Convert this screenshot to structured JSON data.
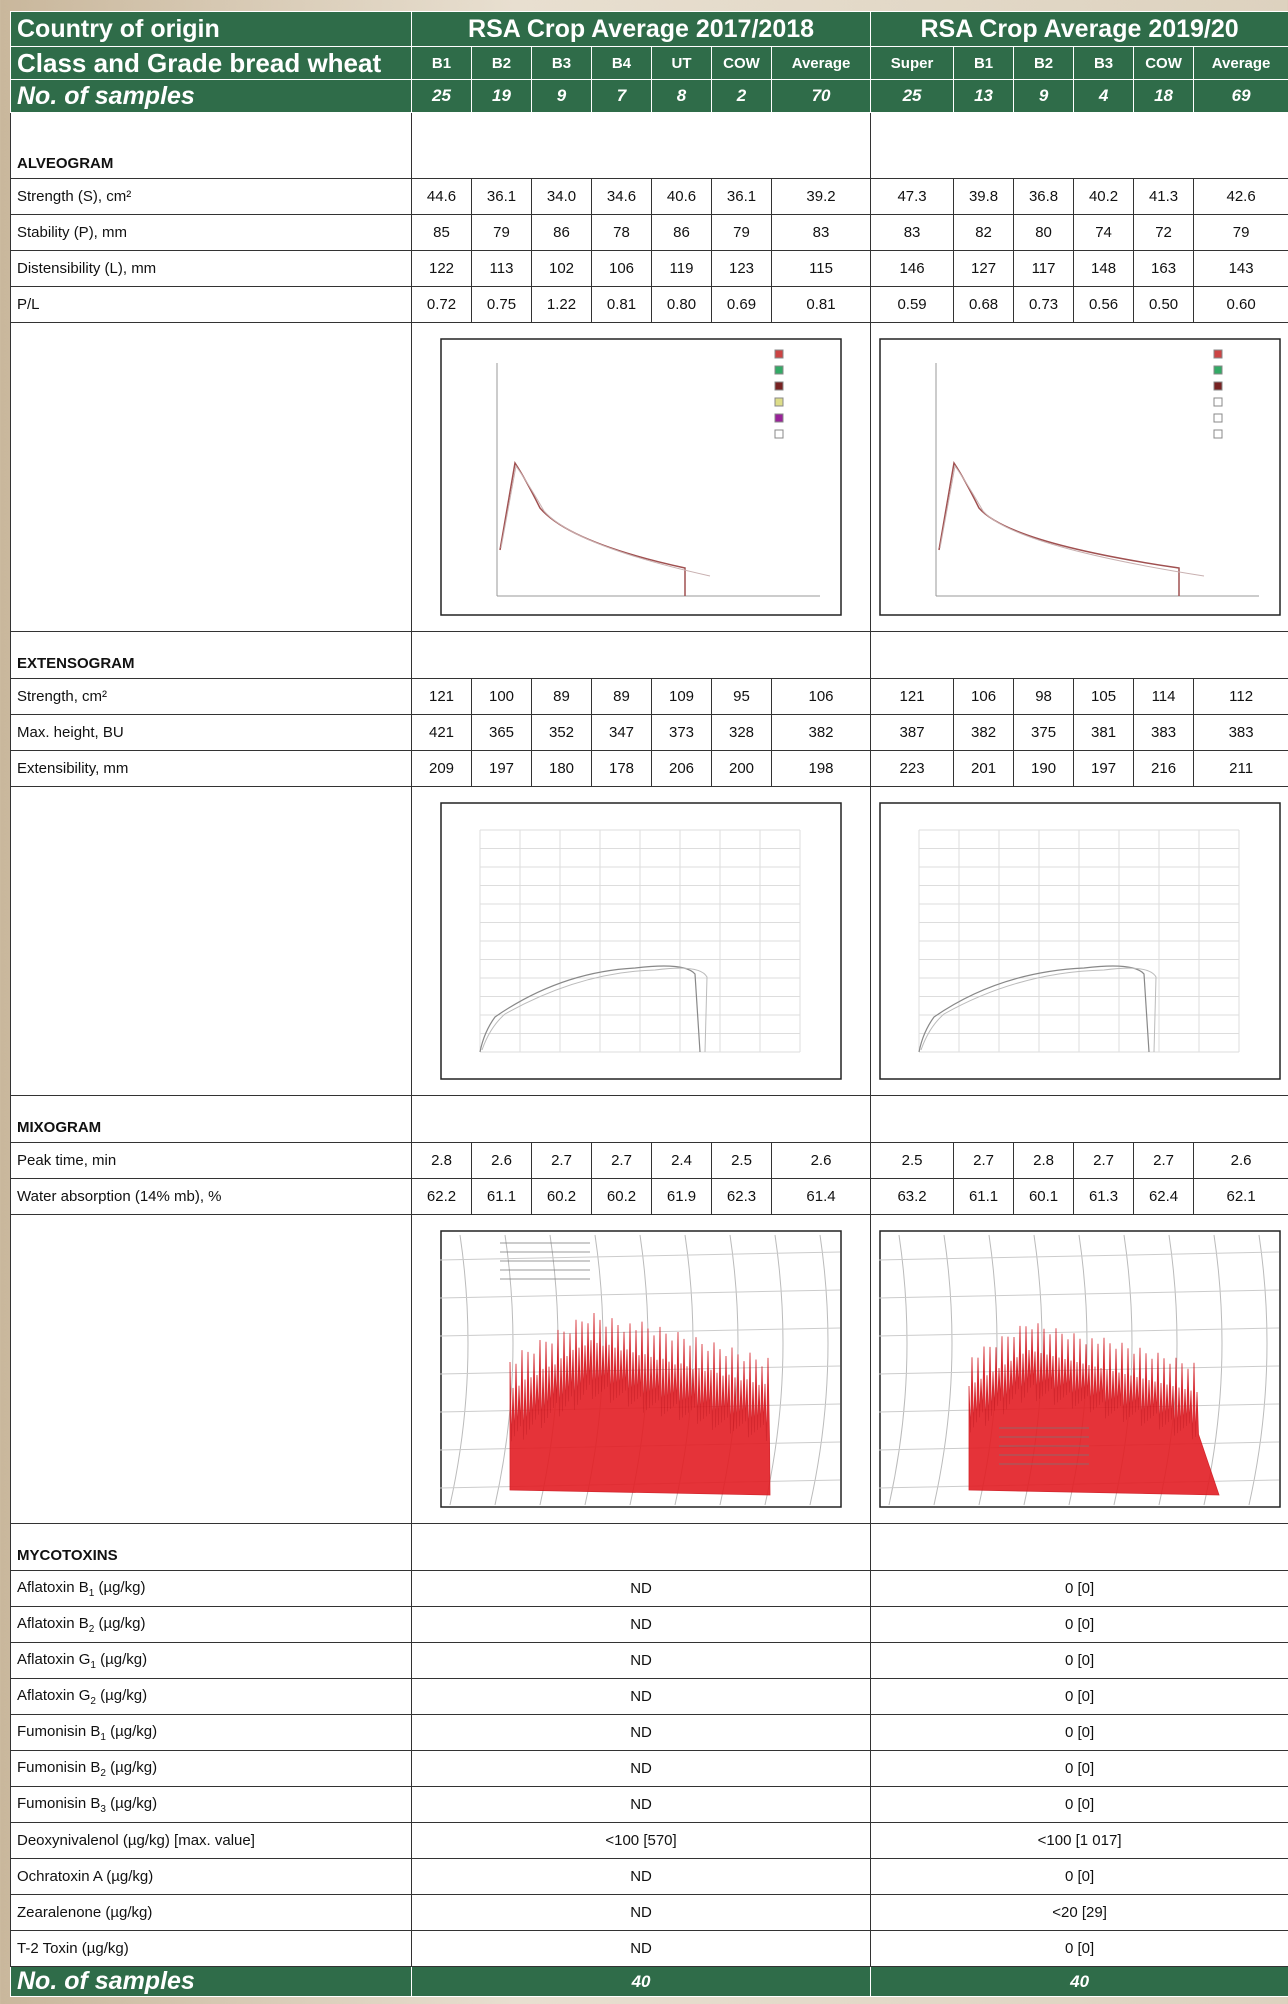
{
  "header": {
    "country_label": "Country of origin",
    "groups": [
      "RSA Crop Average 2017/2018",
      "RSA Crop Average 2019/20"
    ],
    "class_label": "Class and Grade bread wheat",
    "columns": [
      [
        "B1",
        "B2",
        "B3",
        "B4",
        "UT",
        "COW",
        "Average"
      ],
      [
        "Super",
        "B1",
        "B2",
        "B3",
        "COW",
        "Average"
      ]
    ],
    "samples_label": "No. of samples",
    "samples": [
      [
        25,
        19,
        9,
        7,
        8,
        2,
        70
      ],
      [
        25,
        13,
        9,
        4,
        18,
        69
      ]
    ]
  },
  "sections": [
    {
      "title": "ALVEOGRAM",
      "rows": [
        {
          "label": "Strength (S), cm²",
          "values": [
            [
              "44.6",
              "36.1",
              "34.0",
              "34.6",
              "40.6",
              "36.1",
              "39.2"
            ],
            [
              "47.3",
              "39.8",
              "36.8",
              "40.2",
              "41.3",
              "42.6"
            ]
          ]
        },
        {
          "label": "Stability (P), mm",
          "values": [
            [
              "85",
              "79",
              "86",
              "78",
              "86",
              "79",
              "83"
            ],
            [
              "83",
              "82",
              "80",
              "74",
              "72",
              "79"
            ]
          ]
        },
        {
          "label": "Distensibility (L), mm",
          "values": [
            [
              "122",
              "113",
              "102",
              "106",
              "119",
              "123",
              "115"
            ],
            [
              "146",
              "127",
              "117",
              "148",
              "163",
              "143"
            ]
          ]
        },
        {
          "label": "P/L",
          "values": [
            [
              "0.72",
              "0.75",
              "1.22",
              "0.81",
              "0.80",
              "0.69",
              "0.81"
            ],
            [
              "0.59",
              "0.68",
              "0.73",
              "0.56",
              "0.50",
              "0.60"
            ]
          ]
        }
      ]
    },
    {
      "title": "EXTENSOGRAM",
      "rows": [
        {
          "label": "Strength, cm²",
          "values": [
            [
              "121",
              "100",
              "89",
              "89",
              "109",
              "95",
              "106"
            ],
            [
              "121",
              "106",
              "98",
              "105",
              "114",
              "112"
            ]
          ]
        },
        {
          "label": "Max. height, BU",
          "values": [
            [
              "421",
              "365",
              "352",
              "347",
              "373",
              "328",
              "382"
            ],
            [
              "387",
              "382",
              "375",
              "381",
              "383",
              "383"
            ]
          ]
        },
        {
          "label": "Extensibility, mm",
          "values": [
            [
              "209",
              "197",
              "180",
              "178",
              "206",
              "200",
              "198"
            ],
            [
              "223",
              "201",
              "190",
              "197",
              "216",
              "211"
            ]
          ]
        }
      ]
    },
    {
      "title": "MIXOGRAM",
      "rows": [
        {
          "label": "Peak time, min",
          "values": [
            [
              "2.8",
              "2.6",
              "2.7",
              "2.7",
              "2.4",
              "2.5",
              "2.6"
            ],
            [
              "2.5",
              "2.7",
              "2.8",
              "2.7",
              "2.7",
              "2.6"
            ]
          ]
        },
        {
          "label": "Water absorption (14% mb), %",
          "values": [
            [
              "62.2",
              "61.1",
              "60.2",
              "60.2",
              "61.9",
              "62.3",
              "61.4"
            ],
            [
              "63.2",
              "61.1",
              "60.1",
              "61.3",
              "62.4",
              "62.1"
            ]
          ]
        }
      ]
    }
  ],
  "mycotoxins": {
    "title": "MYCOTOXINS",
    "rows": [
      {
        "name": "Aflatoxin B",
        "sub": "1",
        "unit": "(µg/kg)",
        "values": [
          "ND",
          "0 [0]"
        ]
      },
      {
        "name": "Aflatoxin B",
        "sub": "2",
        "unit": "(µg/kg)",
        "values": [
          "ND",
          "0 [0]"
        ]
      },
      {
        "name": "Aflatoxin G",
        "sub": "1",
        "unit": "(µg/kg)",
        "values": [
          "ND",
          "0 [0]"
        ]
      },
      {
        "name": "Aflatoxin G",
        "sub": "2",
        "unit": "(µg/kg)",
        "values": [
          "ND",
          "0 [0]"
        ]
      },
      {
        "name": "Fumonisin B",
        "sub": "1",
        "unit": "(µg/kg)",
        "values": [
          "ND",
          "0 [0]"
        ]
      },
      {
        "name": "Fumonisin B",
        "sub": "2",
        "unit": "(µg/kg)",
        "values": [
          "ND",
          "0 [0]"
        ]
      },
      {
        "name": "Fumonisin B",
        "sub": "3",
        "unit": "(µg/kg)",
        "values": [
          "ND",
          "0 [0]"
        ]
      },
      {
        "name": "Deoxynivalenol (µg/kg) [max. value]",
        "values": [
          "<100 [570]",
          "<100 [1 017]"
        ]
      },
      {
        "name": "Ochratoxin A (µg/kg)",
        "values": [
          "ND",
          "0 [0]"
        ]
      },
      {
        "name": "Zearalenone (µg/kg)",
        "values": [
          "ND",
          "<20 [29]"
        ]
      },
      {
        "name": "T-2 Toxin (µg/kg)",
        "values": [
          "ND",
          "0 [0]"
        ]
      }
    ]
  },
  "footer": {
    "label": "No. of samples",
    "values": [
      40,
      40
    ]
  }
}
